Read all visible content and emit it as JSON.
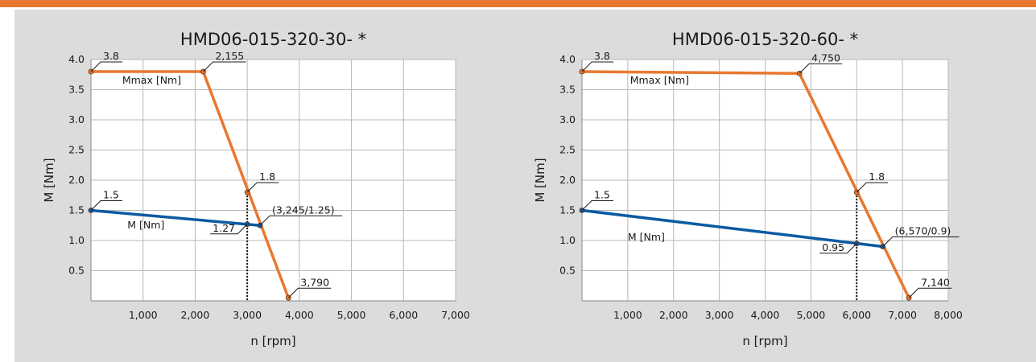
{
  "colors": {
    "accent": "#e8782f",
    "torque": "#0b5aa3",
    "panel": "#dcdcdc"
  },
  "chart_data": [
    {
      "type": "line",
      "title": "HMD06-015-320-30- *",
      "xlabel": "n [rpm]",
      "ylabel": "M [Nm]",
      "xlim": [
        0,
        7000
      ],
      "ylim": [
        0,
        4.0
      ],
      "x_ticks": [
        1000,
        2000,
        3000,
        4000,
        5000,
        6000,
        7000
      ],
      "x_tick_labels": [
        "1,000",
        "2,000",
        "3,000",
        "4,000",
        "5,000",
        "6,000",
        "7,000"
      ],
      "y_ticks": [
        0.5,
        1.0,
        1.5,
        2.0,
        2.5,
        3.0,
        3.5,
        4.0
      ],
      "y_tick_labels": [
        "0.5",
        "1.0",
        "1.5",
        "2.0",
        "2.5",
        "3.0",
        "3.5",
        "4.0"
      ],
      "grid": true,
      "series": [
        {
          "name": "Mmax [Nm]",
          "color": "#e8782f",
          "x": [
            0,
            2155,
            3790
          ],
          "y": [
            3.8,
            3.8,
            0.05
          ]
        },
        {
          "name": "M [Nm]",
          "color": "#0b5aa3",
          "x": [
            0,
            3245
          ],
          "y": [
            1.5,
            1.25
          ]
        }
      ],
      "markers": [
        {
          "x": 0,
          "y": 3.8,
          "color": "#e8782f"
        },
        {
          "x": 2155,
          "y": 3.8,
          "color": "#e8782f"
        },
        {
          "x": 3000,
          "y": 1.8,
          "color": "#e8782f"
        },
        {
          "x": 3790,
          "y": 0.05,
          "color": "#e8782f"
        },
        {
          "x": 0,
          "y": 1.5,
          "color": "#0b5aa3"
        },
        {
          "x": 3000,
          "y": 1.27,
          "color": "#0b5aa3"
        },
        {
          "x": 3245,
          "y": 1.25,
          "color": "#0b5aa3"
        }
      ],
      "rated_speed_line": {
        "x": 3000,
        "y_top": 1.8
      },
      "annotations": [
        {
          "text": "3.8",
          "x": 0,
          "y": 3.8,
          "side": "right"
        },
        {
          "text": "2,155",
          "x": 2155,
          "y": 3.8,
          "side": "right"
        },
        {
          "text": "1.8",
          "x": 3000,
          "y": 1.8,
          "side": "right"
        },
        {
          "text": "1.5",
          "x": 0,
          "y": 1.5,
          "side": "right"
        },
        {
          "text": "(3,245/1.25)",
          "x": 3245,
          "y": 1.25,
          "side": "right"
        },
        {
          "text": "1.27",
          "x": 3000,
          "y": 1.27,
          "side": "left"
        },
        {
          "text": "3,790",
          "x": 3790,
          "y": 0.05,
          "side": "right"
        }
      ],
      "curve_labels": [
        {
          "text": "Mmax [Nm]",
          "x": 600,
          "y": 3.6
        },
        {
          "text": "M [Nm]",
          "x": 700,
          "y": 1.2
        }
      ]
    },
    {
      "type": "line",
      "title": "HMD06-015-320-60- *",
      "xlabel": "n [rpm]",
      "ylabel": "M [Nm]",
      "xlim": [
        0,
        8000
      ],
      "ylim": [
        0,
        4.0
      ],
      "x_ticks": [
        1000,
        2000,
        3000,
        4000,
        5000,
        6000,
        7000,
        8000
      ],
      "x_tick_labels": [
        "1,000",
        "2,000",
        "3,000",
        "4,000",
        "5,000",
        "6,000",
        "7,000",
        "8,000"
      ],
      "y_ticks": [
        0.5,
        1.0,
        1.5,
        2.0,
        2.5,
        3.0,
        3.5,
        4.0
      ],
      "y_tick_labels": [
        "0.5",
        "1.0",
        "1.5",
        "2.0",
        "2.5",
        "3.0",
        "3.5",
        "4.0"
      ],
      "grid": true,
      "series": [
        {
          "name": "Mmax [Nm]",
          "color": "#e8782f",
          "x": [
            0,
            4750,
            7140
          ],
          "y": [
            3.8,
            3.77,
            0.05
          ]
        },
        {
          "name": "M [Nm]",
          "color": "#0b5aa3",
          "x": [
            0,
            6570
          ],
          "y": [
            1.5,
            0.9
          ]
        }
      ],
      "markers": [
        {
          "x": 0,
          "y": 3.8,
          "color": "#e8782f"
        },
        {
          "x": 4750,
          "y": 3.77,
          "color": "#e8782f"
        },
        {
          "x": 6000,
          "y": 1.8,
          "color": "#e8782f"
        },
        {
          "x": 7140,
          "y": 0.05,
          "color": "#e8782f"
        },
        {
          "x": 0,
          "y": 1.5,
          "color": "#0b5aa3"
        },
        {
          "x": 6000,
          "y": 0.95,
          "color": "#0b5aa3"
        },
        {
          "x": 6570,
          "y": 0.9,
          "color": "#0b5aa3"
        }
      ],
      "rated_speed_line": {
        "x": 6000,
        "y_top": 1.8
      },
      "annotations": [
        {
          "text": "3.8",
          "x": 0,
          "y": 3.8,
          "side": "right"
        },
        {
          "text": "4,750",
          "x": 4750,
          "y": 3.77,
          "side": "right"
        },
        {
          "text": "1.8",
          "x": 6000,
          "y": 1.8,
          "side": "right"
        },
        {
          "text": "1.5",
          "x": 0,
          "y": 1.5,
          "side": "right"
        },
        {
          "text": "(6,570/0.9)",
          "x": 6570,
          "y": 0.9,
          "side": "right"
        },
        {
          "text": "0.95",
          "x": 6000,
          "y": 0.95,
          "side": "left"
        },
        {
          "text": "7,140",
          "x": 7140,
          "y": 0.05,
          "side": "right"
        }
      ],
      "curve_labels": [
        {
          "text": "Mmax [Nm]",
          "x": 1050,
          "y": 3.6
        },
        {
          "text": "M [Nm]",
          "x": 1000,
          "y": 1.0
        }
      ]
    }
  ]
}
